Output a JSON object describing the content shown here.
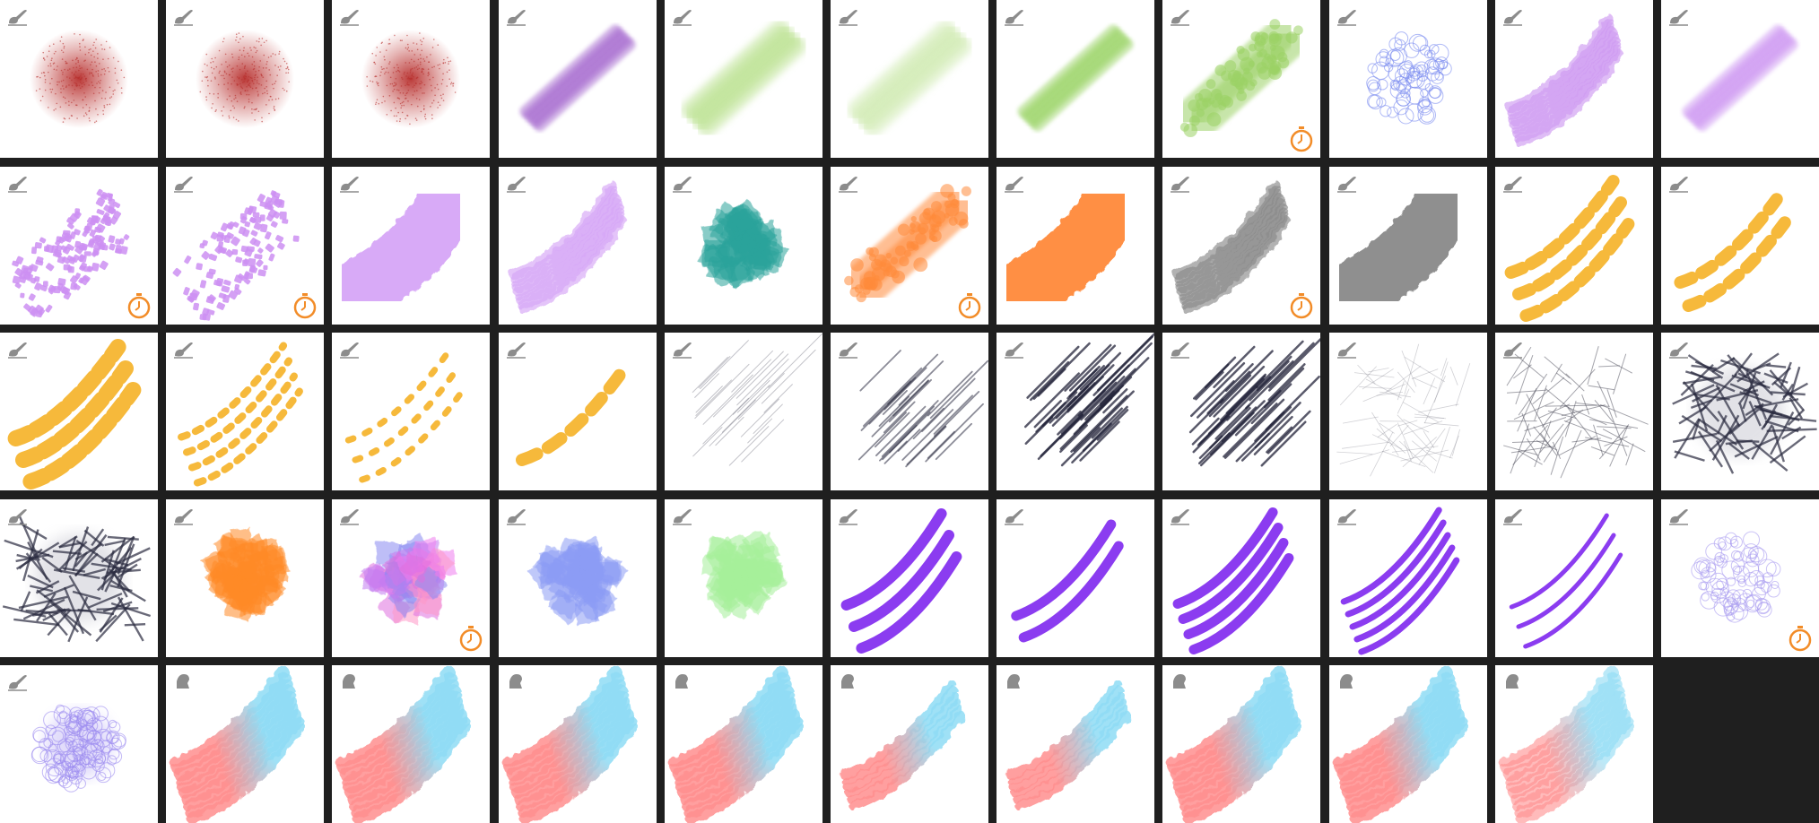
{
  "brushes": [
    {
      "style": "airbrush",
      "color": "#b8302e",
      "icon": "brush-icon",
      "timer": false
    },
    {
      "style": "airbrush",
      "color": "#b8302e",
      "icon": "brush-icon",
      "timer": false
    },
    {
      "style": "airbrush",
      "color": "#b8302e",
      "icon": "brush-icon",
      "timer": false
    },
    {
      "style": "streaks",
      "color": "#9b59c9",
      "icon": "brush-icon",
      "timer": false
    },
    {
      "style": "soft-band",
      "color": "#b7e08a",
      "icon": "brush-icon",
      "timer": false
    },
    {
      "style": "soft-band",
      "color": "#cde9ad",
      "icon": "brush-icon",
      "timer": false
    },
    {
      "style": "streaks",
      "color": "#8fcf55",
      "icon": "brush-icon",
      "timer": false
    },
    {
      "style": "spotty-band",
      "color": "#9bd165",
      "icon": "brush-icon",
      "timer": true
    },
    {
      "style": "scribble-cloud",
      "color": "#7b8cf0",
      "icon": "brush-icon",
      "timer": false
    },
    {
      "style": "dry-band",
      "color": "#cf9af2",
      "icon": "brush-icon",
      "timer": false
    },
    {
      "style": "streaks",
      "color": "#c88bf0",
      "icon": "brush-icon",
      "timer": false
    },
    {
      "style": "dots-band",
      "color": "#cc8ff2",
      "icon": "brush-icon",
      "timer": true
    },
    {
      "style": "dots-band-sparse",
      "color": "#cc8ff2",
      "icon": "brush-icon",
      "timer": true
    },
    {
      "style": "solid-band",
      "color": "#d6a6f7",
      "icon": "brush-icon",
      "timer": false
    },
    {
      "style": "dry-band",
      "color": "#d6a6f7",
      "icon": "brush-icon",
      "timer": false
    },
    {
      "style": "patch-cloud",
      "color": "#2aa39b",
      "icon": "brush-icon",
      "timer": false
    },
    {
      "style": "spotty-band",
      "color": "#ff8a3a",
      "icon": "brush-icon",
      "timer": true
    },
    {
      "style": "solid-band",
      "color": "#ff8a3a",
      "icon": "brush-icon",
      "timer": false
    },
    {
      "style": "dry-band",
      "color": "#8a8a8a",
      "icon": "brush-icon",
      "timer": true
    },
    {
      "style": "solid-band",
      "color": "#8a8a8a",
      "icon": "brush-icon",
      "timer": false
    },
    {
      "style": "dashes-3",
      "color": "#f6b93b",
      "icon": "brush-icon",
      "timer": false
    },
    {
      "style": "dashes-2",
      "color": "#f6b93b",
      "icon": "brush-icon",
      "timer": false
    },
    {
      "style": "dashes-3-big",
      "color": "#f6b93b",
      "icon": "brush-icon",
      "timer": false
    },
    {
      "style": "dashes-4-small",
      "color": "#f6b93b",
      "icon": "brush-icon",
      "timer": false
    },
    {
      "style": "dashes-3-small",
      "color": "#f6b93b",
      "icon": "brush-icon",
      "timer": false
    },
    {
      "style": "dashes-1",
      "color": "#f6b93b",
      "icon": "brush-icon",
      "timer": false
    },
    {
      "style": "hatch-light",
      "color": "#555566",
      "icon": "brush-icon",
      "timer": false
    },
    {
      "style": "hatch-medium",
      "color": "#2f3044",
      "icon": "brush-icon",
      "timer": false
    },
    {
      "style": "hatch-heavy",
      "color": "#23243a",
      "icon": "brush-icon",
      "timer": false
    },
    {
      "style": "hatch-heavy",
      "color": "#23243a",
      "icon": "brush-icon",
      "timer": false
    },
    {
      "style": "cross-light",
      "color": "#6a6a78",
      "icon": "brush-icon",
      "timer": false
    },
    {
      "style": "cross-medium",
      "color": "#4a4a58",
      "icon": "brush-icon",
      "timer": false
    },
    {
      "style": "cross-heavy",
      "color": "#2a2b40",
      "icon": "brush-icon",
      "timer": false
    },
    {
      "style": "cross-heavy",
      "color": "#2a2b40",
      "icon": "brush-icon",
      "timer": false
    },
    {
      "style": "patch-cloud",
      "color": "#ff8a25",
      "icon": "brush-icon",
      "timer": false
    },
    {
      "style": "patch-cloud-multi",
      "color": "#f07ef0",
      "icon": "brush-icon",
      "timer": true
    },
    {
      "style": "patch-cloud",
      "color": "#8c9cf5",
      "icon": "brush-icon",
      "timer": false
    },
    {
      "style": "patch-cloud",
      "color": "#a6f09a",
      "icon": "brush-icon",
      "timer": false
    },
    {
      "style": "lines-3",
      "color": "#8b3cf0",
      "icon": "brush-icon",
      "timer": false
    },
    {
      "style": "lines-2",
      "color": "#8b3cf0",
      "icon": "brush-icon",
      "timer": false
    },
    {
      "style": "lines-4",
      "color": "#8b3cf0",
      "icon": "brush-icon",
      "timer": false
    },
    {
      "style": "lines-5",
      "color": "#8b3cf0",
      "icon": "brush-icon",
      "timer": false
    },
    {
      "style": "lines-3-thin",
      "color": "#8b3cf0",
      "icon": "brush-icon",
      "timer": false
    },
    {
      "style": "scribble-cloud",
      "color": "#a99bf0",
      "icon": "brush-icon",
      "timer": true
    },
    {
      "style": "scribble-cloud-dense",
      "color": "#9d8cf0",
      "icon": "brush-icon",
      "timer": false
    },
    {
      "style": "gradient-band",
      "color": "#ff8f8f",
      "icon": "smudge-icon",
      "timer": false
    },
    {
      "style": "gradient-band",
      "color": "#ff8f8f",
      "icon": "smudge-icon",
      "timer": false
    },
    {
      "style": "gradient-band",
      "color": "#ff8f8f",
      "icon": "smudge-icon",
      "timer": false
    },
    {
      "style": "gradient-band",
      "color": "#ff8f8f",
      "icon": "smudge-icon",
      "timer": false
    },
    {
      "style": "gradient-band-striped",
      "color": "#ff8f8f",
      "icon": "smudge-icon",
      "timer": false
    },
    {
      "style": "gradient-band-striped",
      "color": "#ff8f8f",
      "icon": "smudge-icon",
      "timer": false
    },
    {
      "style": "gradient-band",
      "color": "#ff8f8f",
      "icon": "smudge-icon",
      "timer": false
    },
    {
      "style": "gradient-band",
      "color": "#ff8f8f",
      "icon": "smudge-icon",
      "timer": false
    },
    {
      "style": "gradient-band-soft",
      "color": "#ff8f8f",
      "icon": "smudge-icon",
      "timer": false
    }
  ],
  "colors": {
    "background": "#1f1f1f",
    "tile": "#ffffff",
    "icon_gray": "#8c8c8c",
    "timer_orange": "#f28c28",
    "gradient_blue": "#8fdcf5"
  }
}
